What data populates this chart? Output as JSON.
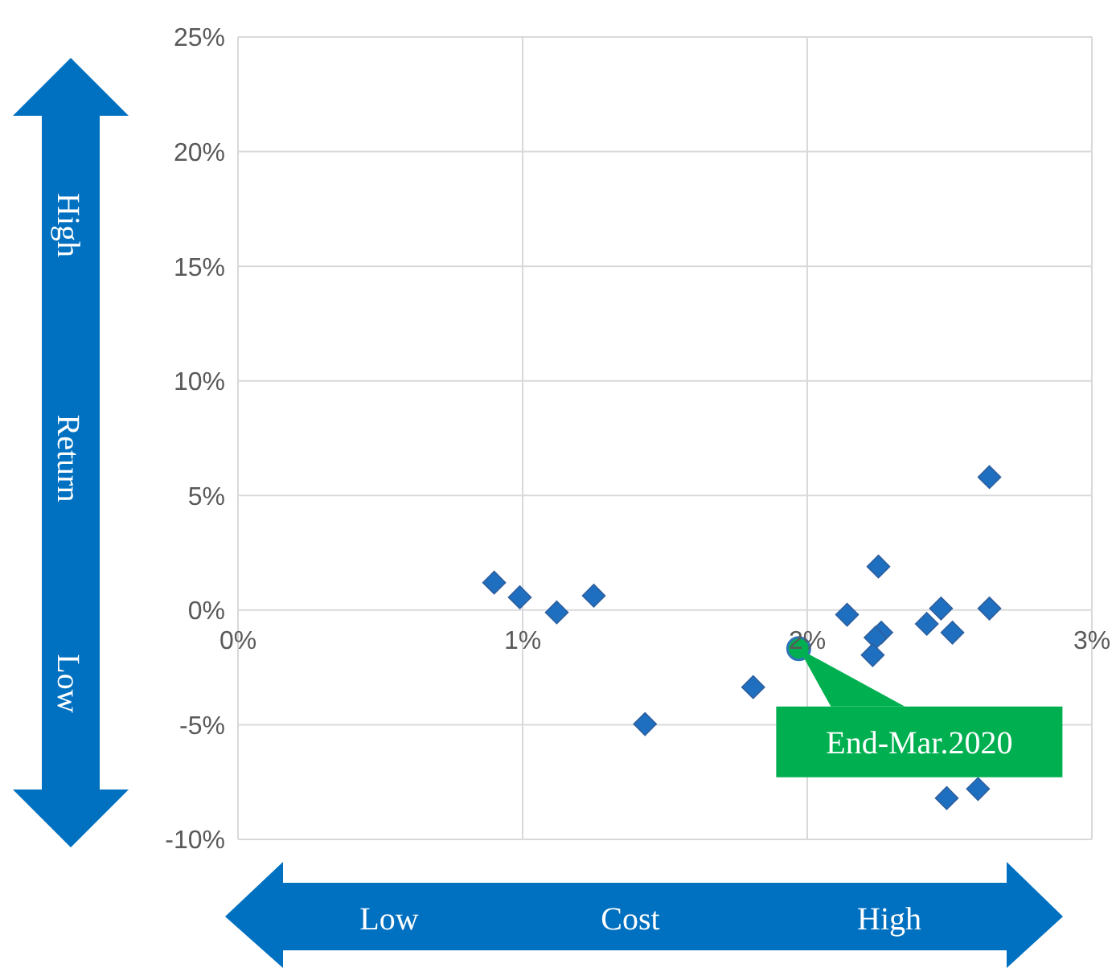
{
  "chart_data": {
    "type": "scatter",
    "xlabel": "Cost",
    "ylabel": "Return",
    "xlim": [
      0,
      3
    ],
    "xticks": [
      {
        "value": 0,
        "label": "0%"
      },
      {
        "value": 1,
        "label": "1%"
      },
      {
        "value": 2,
        "label": "2%"
      },
      {
        "value": 3,
        "label": "3%"
      }
    ],
    "ylim": [
      -10,
      25
    ],
    "yticks": [
      {
        "value": -10,
        "label": "-10%"
      },
      {
        "value": -5,
        "label": "-5%"
      },
      {
        "value": 0,
        "label": "0%"
      },
      {
        "value": 5,
        "label": "5%"
      },
      {
        "value": 10,
        "label": "10%"
      },
      {
        "value": 15,
        "label": "15%"
      },
      {
        "value": 20,
        "label": "20%"
      },
      {
        "value": 25,
        "label": "25%"
      }
    ],
    "grid": true,
    "series": [
      {
        "color": "#1f6fc0",
        "marker": "diamond",
        "x": [
          0.9,
          0.99,
          1.12,
          1.25,
          1.43,
          1.81,
          2.14,
          2.25,
          2.26,
          2.24,
          2.23,
          2.42,
          2.47,
          2.51,
          2.64,
          2.64,
          2.49,
          2.6
        ],
        "values": [
          1.2,
          0.56,
          -0.1,
          0.63,
          -4.97,
          -3.36,
          -0.2,
          1.9,
          -0.98,
          -1.2,
          -1.96,
          -0.6,
          0.07,
          -0.98,
          0.07,
          5.8,
          -8.2,
          -7.8
        ]
      },
      {
        "color": "#00b050",
        "marker": "circle",
        "x": [
          1.97
        ],
        "values": [
          -1.68
        ]
      }
    ],
    "annotations": [
      {
        "text": "End-Mar.2020",
        "x": 1.97,
        "y": -1.68
      },
      "High",
      "Low",
      "Low",
      "High"
    ]
  }
}
